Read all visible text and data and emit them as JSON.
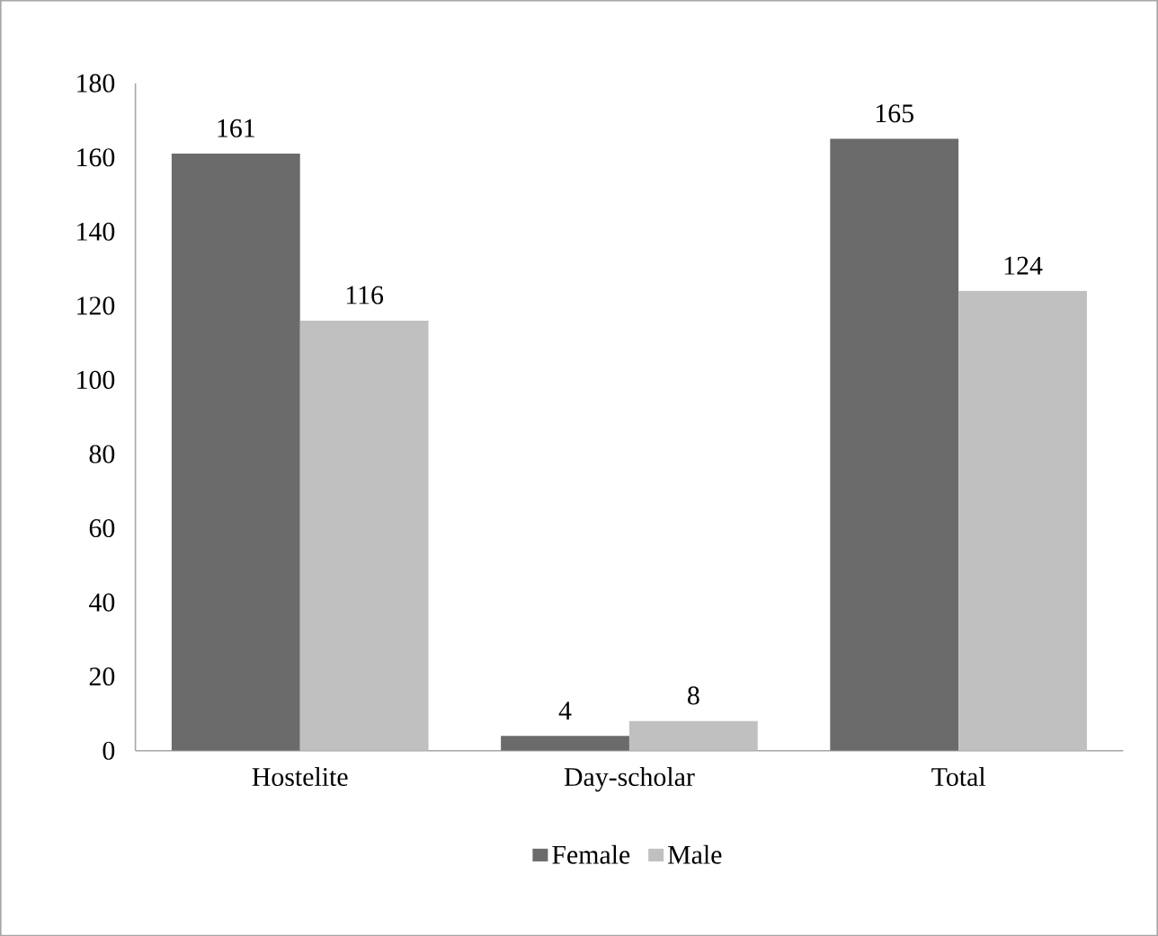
{
  "chart_data": {
    "type": "bar",
    "categories": [
      "Hostelite",
      "Day-scholar",
      "Total"
    ],
    "series": [
      {
        "name": "Female",
        "color": "#6b6b6b",
        "values": [
          161,
          4,
          165
        ]
      },
      {
        "name": "Male",
        "color": "#c0c0c0",
        "values": [
          116,
          8,
          124
        ]
      }
    ],
    "ylim": [
      0,
      180
    ],
    "yticks": [
      0,
      20,
      40,
      60,
      80,
      100,
      120,
      140,
      160,
      180
    ],
    "data_labels": true,
    "legend": "bottom",
    "grid": false
  }
}
